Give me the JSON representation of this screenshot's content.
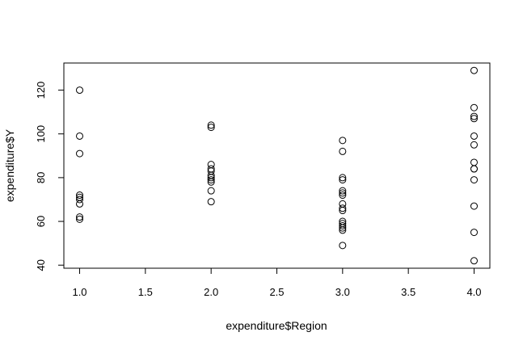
{
  "chart_data": {
    "type": "scatter",
    "title": "",
    "xlabel": "expenditure$Region",
    "ylabel": "expenditure$Y",
    "xlim": [
      0.88,
      4.12
    ],
    "ylim": [
      38.6,
      132.4
    ],
    "xticks": [
      "1.0",
      "1.5",
      "2.0",
      "2.5",
      "3.0",
      "3.5",
      "4.0"
    ],
    "yticks": [
      "40",
      "60",
      "80",
      "100",
      "120"
    ],
    "xtick_values": [
      1.0,
      1.5,
      2.0,
      2.5,
      3.0,
      3.5,
      4.0
    ],
    "ytick_values": [
      40,
      60,
      80,
      100,
      120
    ],
    "grid": false,
    "series": [
      {
        "points": [
          [
            1,
            120
          ],
          [
            1,
            99
          ],
          [
            1,
            91
          ],
          [
            1,
            72
          ],
          [
            1,
            71
          ],
          [
            1,
            70
          ],
          [
            1,
            68
          ],
          [
            1,
            62
          ],
          [
            1,
            61
          ],
          [
            2,
            104
          ],
          [
            2,
            103
          ],
          [
            2,
            86
          ],
          [
            2,
            84
          ],
          [
            2,
            83
          ],
          [
            2,
            81
          ],
          [
            2,
            80
          ],
          [
            2,
            79
          ],
          [
            2,
            78
          ],
          [
            2,
            74
          ],
          [
            2,
            69
          ],
          [
            3,
            97
          ],
          [
            3,
            92
          ],
          [
            3,
            80
          ],
          [
            3,
            79
          ],
          [
            3,
            74
          ],
          [
            3,
            73
          ],
          [
            3,
            72
          ],
          [
            3,
            68
          ],
          [
            3,
            66
          ],
          [
            3,
            65
          ],
          [
            3,
            60
          ],
          [
            3,
            59
          ],
          [
            3,
            58
          ],
          [
            3,
            57
          ],
          [
            3,
            56
          ],
          [
            3,
            49
          ],
          [
            4,
            129
          ],
          [
            4,
            112
          ],
          [
            4,
            108
          ],
          [
            4,
            107
          ],
          [
            4,
            99
          ],
          [
            4,
            95
          ],
          [
            4,
            87
          ],
          [
            4,
            84
          ],
          [
            4,
            84
          ],
          [
            4,
            79
          ],
          [
            4,
            67
          ],
          [
            4,
            55
          ],
          [
            4,
            42
          ]
        ]
      }
    ]
  }
}
